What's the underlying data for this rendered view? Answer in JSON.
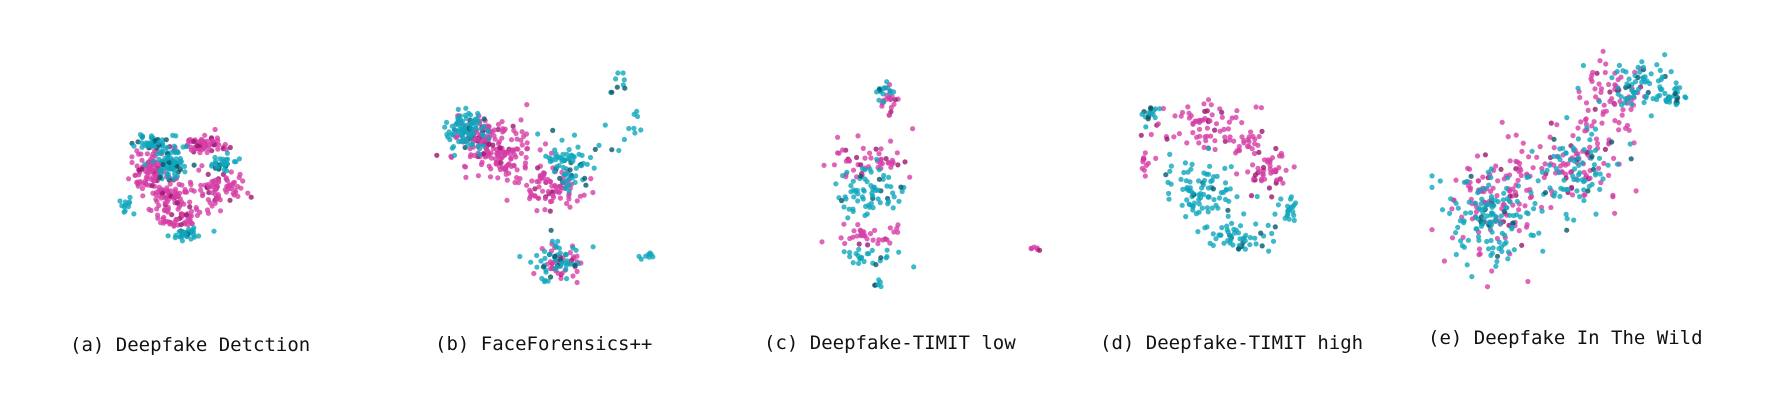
{
  "colors": {
    "fake": "#d63fa6",
    "real": "#0fa6bd",
    "fake_dark": "#9b1670",
    "real_dark": "#06586a",
    "background": "#ffffff"
  },
  "panels": [
    {
      "id": "a",
      "caption": "(a) Deepfake Detction"
    },
    {
      "id": "b",
      "caption": "(b) FaceForensics++"
    },
    {
      "id": "c",
      "caption": "(c) Deepfake-TIMIT low"
    },
    {
      "id": "d",
      "caption": "(d) Deepfake-TIMIT high"
    },
    {
      "id": "e",
      "caption": "(e) Deepfake In The Wild"
    }
  ],
  "chart_data": [
    {
      "type": "scatter",
      "panel": "a",
      "title": "",
      "grid": false,
      "axes_visible": false,
      "series": [
        {
          "color": "fake",
          "clusters": [
            [
              0.62,
              0.28,
              0.1,
              0.05,
              70
            ],
            [
              0.3,
              0.45,
              0.1,
              0.12,
              90
            ],
            [
              0.48,
              0.78,
              0.14,
              0.08,
              70
            ],
            [
              0.72,
              0.6,
              0.12,
              0.1,
              70
            ],
            [
              0.4,
              0.62,
              0.12,
              0.1,
              60
            ]
          ]
        },
        {
          "color": "real",
          "clusters": [
            [
              0.42,
              0.42,
              0.1,
              0.1,
              80
            ],
            [
              0.3,
              0.28,
              0.08,
              0.05,
              40
            ],
            [
              0.52,
              0.92,
              0.06,
              0.03,
              35
            ],
            [
              0.75,
              0.42,
              0.08,
              0.06,
              30
            ],
            [
              0.16,
              0.72,
              0.04,
              0.04,
              12
            ]
          ]
        }
      ]
    },
    {
      "type": "scatter",
      "panel": "b",
      "title": "",
      "grid": false,
      "axes_visible": false,
      "series": [
        {
          "color": "fake",
          "clusters": [
            [
              0.3,
              0.35,
              0.15,
              0.1,
              150
            ],
            [
              0.2,
              0.25,
              0.08,
              0.08,
              60
            ],
            [
              0.52,
              0.5,
              0.12,
              0.08,
              80
            ],
            [
              0.55,
              0.82,
              0.1,
              0.06,
              40
            ]
          ]
        },
        {
          "color": "real",
          "clusters": [
            [
              0.15,
              0.25,
              0.07,
              0.07,
              90
            ],
            [
              0.6,
              0.4,
              0.08,
              0.08,
              70
            ],
            [
              0.55,
              0.82,
              0.1,
              0.07,
              50
            ],
            [
              0.85,
              0.15,
              0.07,
              0.18,
              20
            ],
            [
              0.95,
              0.8,
              0.04,
              0.03,
              8
            ]
          ]
        }
      ]
    },
    {
      "type": "scatter",
      "panel": "c",
      "title": "",
      "grid": false,
      "axes_visible": false,
      "series": [
        {
          "color": "fake",
          "clusters": [
            [
              0.22,
              0.4,
              0.15,
              0.1,
              50
            ],
            [
              0.2,
              0.75,
              0.12,
              0.05,
              35
            ],
            [
              0.3,
              0.1,
              0.04,
              0.05,
              20
            ],
            [
              0.95,
              0.82,
              0.02,
              0.03,
              6
            ]
          ]
        },
        {
          "color": "real",
          "clusters": [
            [
              0.22,
              0.55,
              0.14,
              0.1,
              70
            ],
            [
              0.2,
              0.85,
              0.1,
              0.04,
              25
            ],
            [
              0.28,
              0.06,
              0.04,
              0.04,
              15
            ],
            [
              0.26,
              0.98,
              0.02,
              0.02,
              6
            ]
          ]
        }
      ]
    },
    {
      "type": "scatter",
      "panel": "d",
      "title": "",
      "grid": false,
      "axes_visible": false,
      "series": [
        {
          "color": "fake",
          "clusters": [
            [
              0.4,
              0.2,
              0.2,
              0.1,
              70
            ],
            [
              0.75,
              0.45,
              0.12,
              0.12,
              50
            ],
            [
              0.08,
              0.4,
              0.04,
              0.06,
              12
            ],
            [
              0.65,
              0.3,
              0.08,
              0.06,
              20
            ]
          ]
        },
        {
          "color": "real",
          "clusters": [
            [
              0.4,
              0.55,
              0.18,
              0.15,
              90
            ],
            [
              0.6,
              0.8,
              0.12,
              0.08,
              50
            ],
            [
              0.12,
              0.15,
              0.05,
              0.05,
              15
            ],
            [
              0.85,
              0.65,
              0.06,
              0.06,
              20
            ]
          ]
        }
      ]
    },
    {
      "type": "scatter",
      "panel": "e",
      "title": "",
      "grid": false,
      "axes_visible": false,
      "series": [
        {
          "color": "fake",
          "clusters": [
            [
              0.25,
              0.6,
              0.15,
              0.18,
              120
            ],
            [
              0.55,
              0.45,
              0.18,
              0.15,
              90
            ],
            [
              0.7,
              0.2,
              0.12,
              0.1,
              60
            ]
          ]
        },
        {
          "color": "real",
          "clusters": [
            [
              0.22,
              0.68,
              0.14,
              0.16,
              130
            ],
            [
              0.55,
              0.5,
              0.15,
              0.15,
              80
            ],
            [
              0.8,
              0.15,
              0.12,
              0.08,
              70
            ],
            [
              0.92,
              0.2,
              0.04,
              0.04,
              20
            ]
          ]
        }
      ]
    }
  ]
}
